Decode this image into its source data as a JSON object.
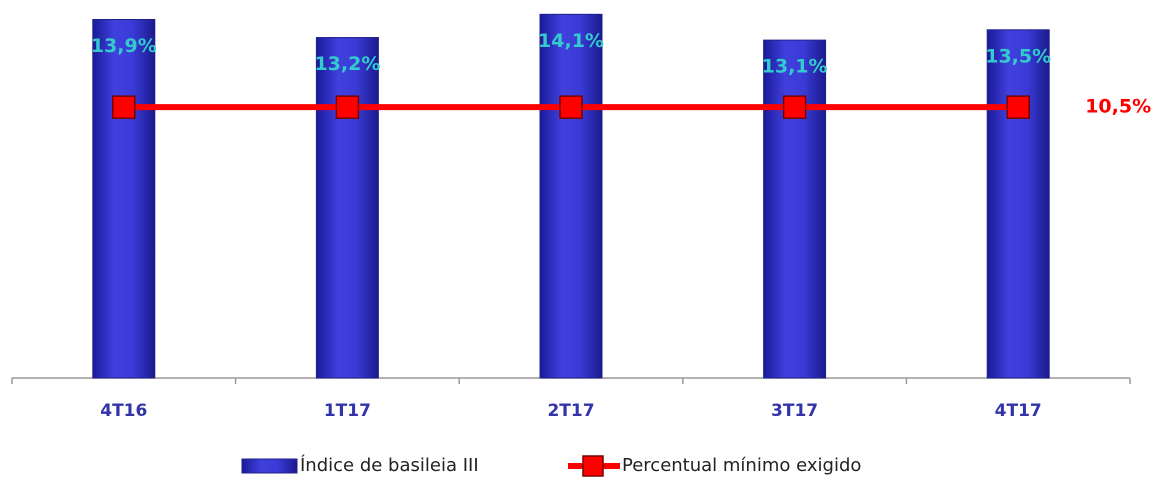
{
  "chart_data": {
    "type": "bar_line",
    "categories": [
      "4T16",
      "1T17",
      "2T17",
      "3T17",
      "4T17"
    ],
    "series": [
      {
        "name": "Índice de basileia III",
        "type": "bar",
        "color": "#3333cc",
        "values": [
          13.9,
          13.2,
          14.1,
          13.1,
          13.5
        ],
        "value_labels": [
          "13,9%",
          "13,2%",
          "14,1%",
          "13,1%",
          "13,5%"
        ]
      },
      {
        "name": "Percentual mínimo exigido",
        "type": "line",
        "color": "#ff0000",
        "values": [
          10.5,
          10.5,
          10.5,
          10.5,
          10.5
        ],
        "value_labels": [
          null,
          null,
          null,
          null,
          "10,5%"
        ]
      }
    ],
    "ylim": [
      0,
      14.5
    ],
    "legend": "bottom"
  }
}
